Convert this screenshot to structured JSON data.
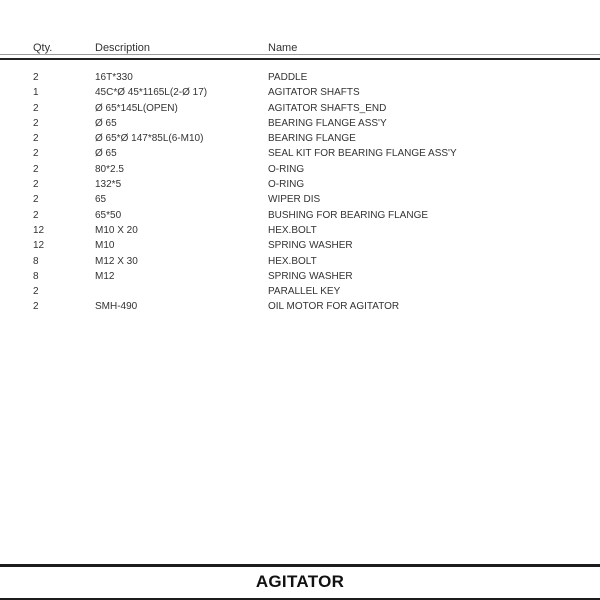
{
  "table": {
    "columns": [
      "Qty.",
      "Description",
      "Name"
    ],
    "rows": [
      {
        "qty": "2",
        "description": "16T*330",
        "name": "PADDLE"
      },
      {
        "qty": "1",
        "description": "45C*Ø 45*1165L(2-Ø 17)",
        "name": "AGITATOR SHAFTS"
      },
      {
        "qty": "2",
        "description": "Ø 65*145L(OPEN)",
        "name": "AGITATOR SHAFTS_END"
      },
      {
        "qty": "2",
        "description": "Ø 65",
        "name": "BEARING FLANGE ASS'Y"
      },
      {
        "qty": "2",
        "description": "Ø 65*Ø 147*85L(6-M10)",
        "name": "BEARING FLANGE"
      },
      {
        "qty": "2",
        "description": "Ø 65",
        "name": "SEAL KIT FOR BEARING FLANGE ASS'Y"
      },
      {
        "qty": "2",
        "description": "80*2.5",
        "name": "O-RING"
      },
      {
        "qty": "2",
        "description": "132*5",
        "name": "O-RING"
      },
      {
        "qty": "2",
        "description": "65",
        "name": "WIPER DIS"
      },
      {
        "qty": "2",
        "description": "65*50",
        "name": "BUSHING FOR BEARING FLANGE"
      },
      {
        "qty": "12",
        "description": "M10 X 20",
        "name": "HEX.BOLT"
      },
      {
        "qty": "12",
        "description": "M10",
        "name": "SPRING WASHER"
      },
      {
        "qty": "8",
        "description": "M12 X 30",
        "name": "HEX.BOLT"
      },
      {
        "qty": "8",
        "description": "M12",
        "name": "SPRING WASHER"
      },
      {
        "qty": "2",
        "description": "",
        "name": "PARALLEL KEY"
      },
      {
        "qty": "2",
        "description": "SMH-490",
        "name": "OIL MOTOR FOR AGITATOR"
      }
    ]
  },
  "footer": {
    "title": "AGITATOR"
  },
  "colors": {
    "background": "#ffffff",
    "text": "#333333",
    "rule_light": "#9b9b9b",
    "rule_dark": "#1c1c1c"
  }
}
